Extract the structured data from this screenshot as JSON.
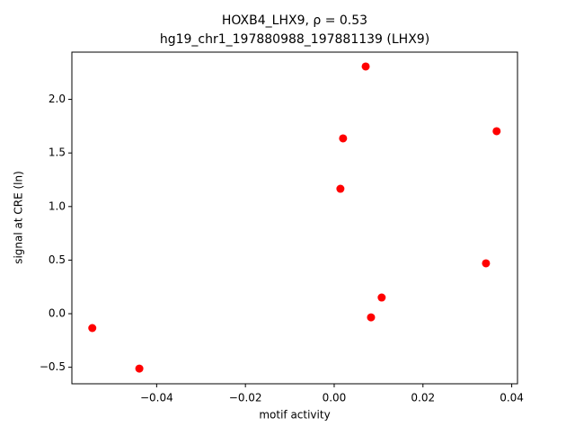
{
  "chart_data": {
    "type": "scatter",
    "title": "HOXB4_LHX9, ρ = 0.53",
    "subtitle": "hg19_chr1_197880988_197881139 (LHX9)",
    "x_label": "motif activity",
    "y_label": "signal at CRE (ln)",
    "color": "#ff0000",
    "x": [
      -0.0545,
      -0.0439,
      0.0014,
      0.002,
      0.0071,
      0.0083,
      0.0107,
      0.0342,
      0.0366
    ],
    "values": [
      -0.134,
      -0.512,
      1.166,
      1.636,
      2.307,
      -0.034,
      0.151,
      0.47,
      1.703
    ],
    "xlim": [
      -0.0591,
      0.0413
    ],
    "ylim": [
      -0.654,
      2.441
    ],
    "xticks": [
      {
        "value": -0.04,
        "label": "−0.04"
      },
      {
        "value": -0.02,
        "label": "−0.02"
      },
      {
        "value": 0,
        "label": "0.00"
      },
      0.02,
      0.04
    ],
    "yticks": [
      {
        "value": -0.5,
        "label": "−0.5"
      },
      {
        "value": 0,
        "label": "0.0"
      },
      0.5,
      {
        "value": 1,
        "label": "1.0"
      },
      1.5,
      {
        "value": 2,
        "label": "2.0"
      }
    ]
  }
}
